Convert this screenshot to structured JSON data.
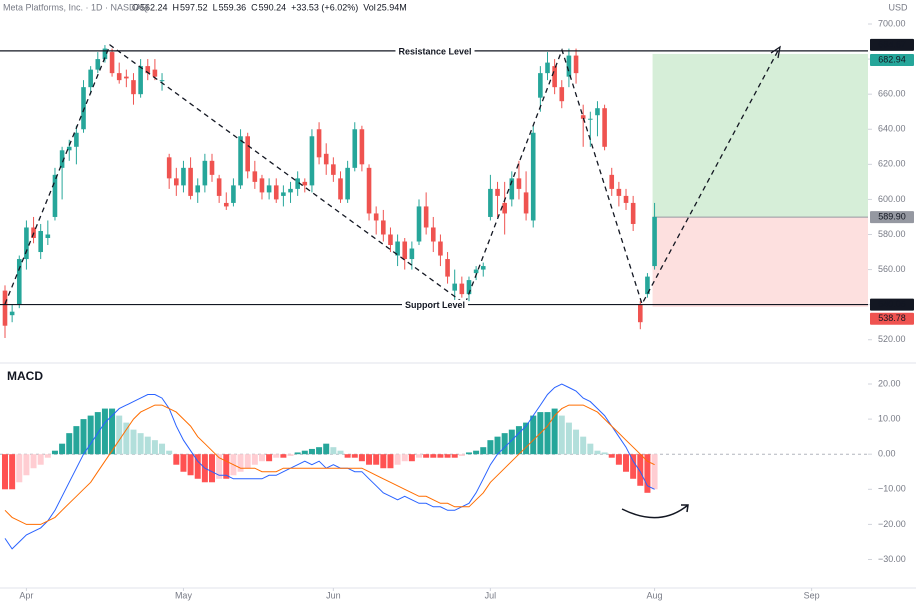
{
  "chart_data": {
    "type": "candlestick",
    "header": {
      "title": "Meta Platforms, Inc. · 1D · NASDAQ",
      "fields": [
        {
          "label": "O",
          "value": 562.24
        },
        {
          "label": "H",
          "value": 597.52
        },
        {
          "label": "L",
          "value": 559.36
        },
        {
          "label": "C",
          "value": 590.24
        }
      ],
      "change": "+33.53 (+6.02%)",
      "volume_label": "Vol",
      "volume": "25.94M"
    },
    "currency": "USD",
    "colors": {
      "up": "#26a69a",
      "down": "#ef5350",
      "macd": "#2962ff",
      "signal": "#ff6d00",
      "hist_up_rising": "#26a69a",
      "hist_up_falling": "#b2dfdb",
      "hist_down_falling": "#ff5252",
      "hist_down_rising": "#ffcdd2"
    },
    "ylim": [
      517,
      704
    ],
    "yticks": [
      {
        "value": 520,
        "label": "520.00"
      },
      {
        "value": 540,
        "label": "540.00"
      },
      {
        "value": 560,
        "label": "560.00"
      },
      {
        "value": 580,
        "label": "580.00"
      },
      {
        "value": 600,
        "label": "600.00"
      },
      {
        "value": 620,
        "label": "620.00"
      },
      {
        "value": 640,
        "label": "640.00"
      },
      {
        "value": 660,
        "label": "660.00"
      },
      {
        "value": 680,
        "label": "680.00"
      },
      {
        "value": 700,
        "label": "700.00"
      }
    ],
    "xlim": [
      -0.7,
      120.9
    ],
    "xticks": [
      {
        "value": 3,
        "label": "Apr"
      },
      {
        "value": 25,
        "label": "May"
      },
      {
        "value": 46,
        "label": "Jun"
      },
      {
        "value": 68,
        "label": "Jul"
      },
      {
        "value": 91,
        "label": "Aug"
      },
      {
        "value": 113,
        "label": "Sep"
      }
    ],
    "candles": {
      "open": [
        548,
        534,
        540,
        566,
        584,
        570,
        578,
        590,
        618,
        628,
        630,
        640,
        664,
        674,
        680,
        684,
        672,
        670,
        668,
        660,
        676,
        674,
        668,
        624,
        612,
        608,
        618,
        604,
        608,
        622,
        612,
        598,
        598,
        608,
        636,
        616,
        612,
        604,
        608,
        602,
        604,
        606,
        610,
        608,
        640,
        626,
        620,
        612,
        600,
        618,
        640,
        618,
        592,
        588,
        580,
        568,
        576,
        566,
        576,
        596,
        584,
        576,
        566,
        548,
        552,
        546,
        558,
        560,
        590,
        606,
        598,
        600,
        612,
        604,
        588,
        658,
        672,
        676,
        664,
        670,
        682,
        648,
        646,
        648,
        652,
        614,
        606,
        602,
        598,
        540,
        546,
        562
      ],
      "high": [
        551,
        540,
        568,
        588,
        590,
        586,
        588,
        618,
        630,
        634,
        642,
        668,
        676,
        684,
        688,
        686,
        678,
        674,
        672,
        680,
        680,
        680,
        672,
        626,
        618,
        622,
        624,
        612,
        626,
        626,
        614,
        604,
        612,
        640,
        638,
        622,
        614,
        612,
        612,
        608,
        610,
        616,
        612,
        640,
        644,
        632,
        624,
        616,
        622,
        644,
        642,
        620,
        596,
        594,
        584,
        580,
        578,
        576,
        600,
        604,
        590,
        580,
        570,
        560,
        556,
        556,
        562,
        564,
        614,
        610,
        610,
        616,
        622,
        616,
        642,
        676,
        684,
        680,
        668,
        686,
        686,
        654,
        650,
        656,
        654,
        618,
        610,
        606,
        602,
        542,
        558,
        598
      ],
      "low": [
        521,
        530,
        538,
        560,
        575,
        566,
        574,
        588,
        600,
        622,
        620,
        638,
        660,
        672,
        678,
        670,
        666,
        664,
        654,
        658,
        668,
        668,
        662,
        606,
        602,
        604,
        600,
        598,
        604,
        610,
        598,
        594,
        596,
        606,
        612,
        606,
        600,
        600,
        598,
        596,
        598,
        602,
        604,
        604,
        620,
        614,
        610,
        598,
        598,
        616,
        616,
        588,
        580,
        576,
        570,
        562,
        560,
        560,
        574,
        580,
        570,
        562,
        552,
        542,
        544,
        542,
        554,
        556,
        588,
        590,
        580,
        596,
        600,
        588,
        584,
        650,
        668,
        660,
        652,
        664,
        666,
        630,
        630,
        636,
        628,
        602,
        596,
        594,
        582,
        526,
        544,
        560
      ],
      "close": [
        528,
        536,
        566,
        584,
        578,
        582,
        580,
        614,
        628,
        630,
        638,
        664,
        674,
        680,
        686,
        672,
        668,
        669,
        660,
        676,
        672,
        670,
        668,
        612,
        608,
        618,
        602,
        608,
        622,
        614,
        602,
        596,
        608,
        636,
        616,
        610,
        604,
        608,
        600,
        604,
        606,
        612,
        608,
        636,
        624,
        620,
        614,
        600,
        618,
        640,
        620,
        592,
        588,
        580,
        574,
        576,
        566,
        572,
        596,
        584,
        576,
        568,
        556,
        552,
        546,
        554,
        560,
        562,
        606,
        602,
        592,
        612,
        606,
        592,
        638,
        672,
        678,
        664,
        656,
        682,
        672,
        646,
        646,
        652,
        630,
        606,
        602,
        598,
        586,
        530,
        556,
        590
      ]
    },
    "levels": [
      {
        "name": "Resistance Level",
        "value": 684.67,
        "label": "684.67"
      },
      {
        "name": "Support Level",
        "value": 540.05,
        "label": "540.05"
      }
    ],
    "position": {
      "target": {
        "value": 682.94,
        "label": "682.94"
      },
      "entry": {
        "value": 589.9,
        "label": "589.90"
      },
      "stop": {
        "value": 538.78,
        "label": "538.78"
      }
    },
    "macd": {
      "title": "MACD",
      "ylim": [
        -33,
        22
      ],
      "yticks": [
        {
          "value": 20,
          "label": "20.00"
        },
        {
          "value": 10,
          "label": "10.00"
        },
        {
          "value": 0,
          "label": "0.00"
        },
        {
          "value": -10,
          "label": "−10.00"
        },
        {
          "value": -20,
          "label": "−20.00"
        },
        {
          "value": -30,
          "label": "−30.00"
        }
      ],
      "histogram": [
        -10,
        -10,
        -8,
        -6,
        -4,
        -3,
        -1,
        1,
        3,
        6,
        8,
        10,
        11,
        12,
        13,
        13,
        11,
        9,
        7,
        6,
        5,
        4,
        3,
        1,
        -3,
        -5,
        -6,
        -7,
        -8,
        -8,
        -7,
        -7,
        -6,
        -5,
        -4,
        -3,
        -2,
        -2,
        -1,
        -1,
        -0.5,
        0.5,
        1,
        1.5,
        2,
        3,
        2,
        1,
        -1,
        -1,
        -2,
        -3,
        -3,
        -4,
        -4,
        -3,
        -2,
        -2,
        -1,
        -1,
        -1,
        -1,
        -1,
        -1,
        -0.5,
        0.5,
        1,
        2,
        4,
        5,
        6,
        7,
        8,
        9,
        11,
        12,
        12,
        13,
        11,
        9,
        7,
        5,
        3,
        1,
        0.5,
        -1,
        -3,
        -5,
        -7,
        -9,
        -11,
        -10
      ],
      "macd_line": [
        -24,
        -27,
        -25,
        -23,
        -22,
        -21,
        -19,
        -16,
        -12,
        -8,
        -4,
        0,
        3,
        6,
        9,
        11,
        13,
        14,
        15,
        16,
        17,
        17,
        16,
        13,
        8,
        4,
        1,
        -2,
        -4,
        -5,
        -6,
        -6,
        -7,
        -7,
        -7,
        -7,
        -7,
        -6,
        -6,
        -5,
        -4,
        -3,
        -2,
        -3,
        -2,
        -4,
        -3,
        -4,
        -4,
        -5,
        -5,
        -7,
        -9,
        -11,
        -12,
        -13,
        -12,
        -13,
        -14,
        -14,
        -15,
        -15,
        -16,
        -16,
        -15,
        -14,
        -11,
        -7,
        -3,
        0,
        2,
        4,
        6,
        8,
        11,
        14,
        17,
        19,
        20,
        19,
        18,
        16,
        15,
        13,
        11,
        8,
        5,
        2,
        -2,
        -5,
        -9,
        -10
      ],
      "signal_line": [
        -16,
        -18,
        -19,
        -20,
        -20,
        -20,
        -19,
        -18,
        -16,
        -14,
        -12,
        -10,
        -8,
        -5,
        -2,
        1,
        4,
        7,
        10,
        12,
        13,
        14,
        14,
        13,
        12,
        10,
        8,
        5,
        3,
        1,
        -1,
        -2,
        -3,
        -4,
        -4,
        -4,
        -5,
        -5,
        -5,
        -4,
        -4,
        -4,
        -4,
        -4,
        -4,
        -4,
        -4,
        -4,
        -4,
        -4,
        -4,
        -5,
        -6,
        -7,
        -8,
        -9,
        -10,
        -11,
        -12,
        -12,
        -13,
        -14,
        -14,
        -15,
        -15,
        -15,
        -13,
        -11,
        -8,
        -6,
        -4,
        -2,
        0,
        2,
        4,
        6,
        8,
        11,
        13,
        14,
        14,
        14,
        13,
        12,
        10,
        8,
        6,
        4,
        2,
        0,
        -2,
        -3
      ]
    }
  }
}
